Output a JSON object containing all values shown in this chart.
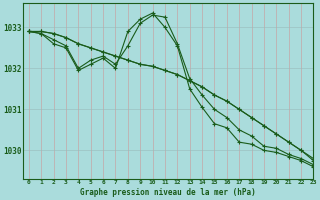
{
  "title": "Graphe pression niveau de la mer (hPa)",
  "background_color": "#aadcdc",
  "grid_color": "#99bbbb",
  "line_color": "#1a5c1a",
  "xlim": [
    -0.5,
    23
  ],
  "ylim": [
    1029.3,
    1033.6
  ],
  "yticks": [
    1030,
    1031,
    1032,
    1033
  ],
  "xticks": [
    0,
    1,
    2,
    3,
    4,
    5,
    6,
    7,
    8,
    9,
    10,
    11,
    12,
    13,
    14,
    15,
    16,
    17,
    18,
    19,
    20,
    21,
    22,
    23
  ],
  "series": [
    [
      1032.9,
      1032.9,
      1032.85,
      1032.75,
      1032.6,
      1032.5,
      1032.4,
      1032.3,
      1032.2,
      1032.1,
      1032.05,
      1031.95,
      1031.85,
      1031.7,
      1031.55,
      1031.35,
      1031.2,
      1031.0,
      1030.8,
      1030.6,
      1030.4,
      1030.2,
      1030.0,
      1029.8
    ],
    [
      1032.9,
      1032.9,
      1032.85,
      1032.75,
      1032.6,
      1032.5,
      1032.4,
      1032.3,
      1032.2,
      1032.1,
      1032.05,
      1031.95,
      1031.85,
      1031.7,
      1031.55,
      1031.35,
      1031.2,
      1031.0,
      1030.8,
      1030.6,
      1030.4,
      1030.2,
      1030.0,
      1029.75
    ],
    [
      1032.9,
      1032.85,
      1032.7,
      1032.55,
      1032.0,
      1032.2,
      1032.3,
      1032.1,
      1032.55,
      1033.1,
      1033.3,
      1033.25,
      1032.6,
      1031.75,
      1031.35,
      1031.0,
      1030.8,
      1030.5,
      1030.35,
      1030.1,
      1030.05,
      1029.9,
      1029.8,
      1029.65
    ],
    [
      1032.9,
      1032.85,
      1032.6,
      1032.5,
      1031.95,
      1032.1,
      1032.25,
      1032.0,
      1032.9,
      1033.2,
      1033.35,
      1033.0,
      1032.55,
      1031.5,
      1031.05,
      1030.65,
      1030.55,
      1030.2,
      1030.15,
      1030.0,
      1029.95,
      1029.85,
      1029.75,
      1029.6
    ]
  ]
}
